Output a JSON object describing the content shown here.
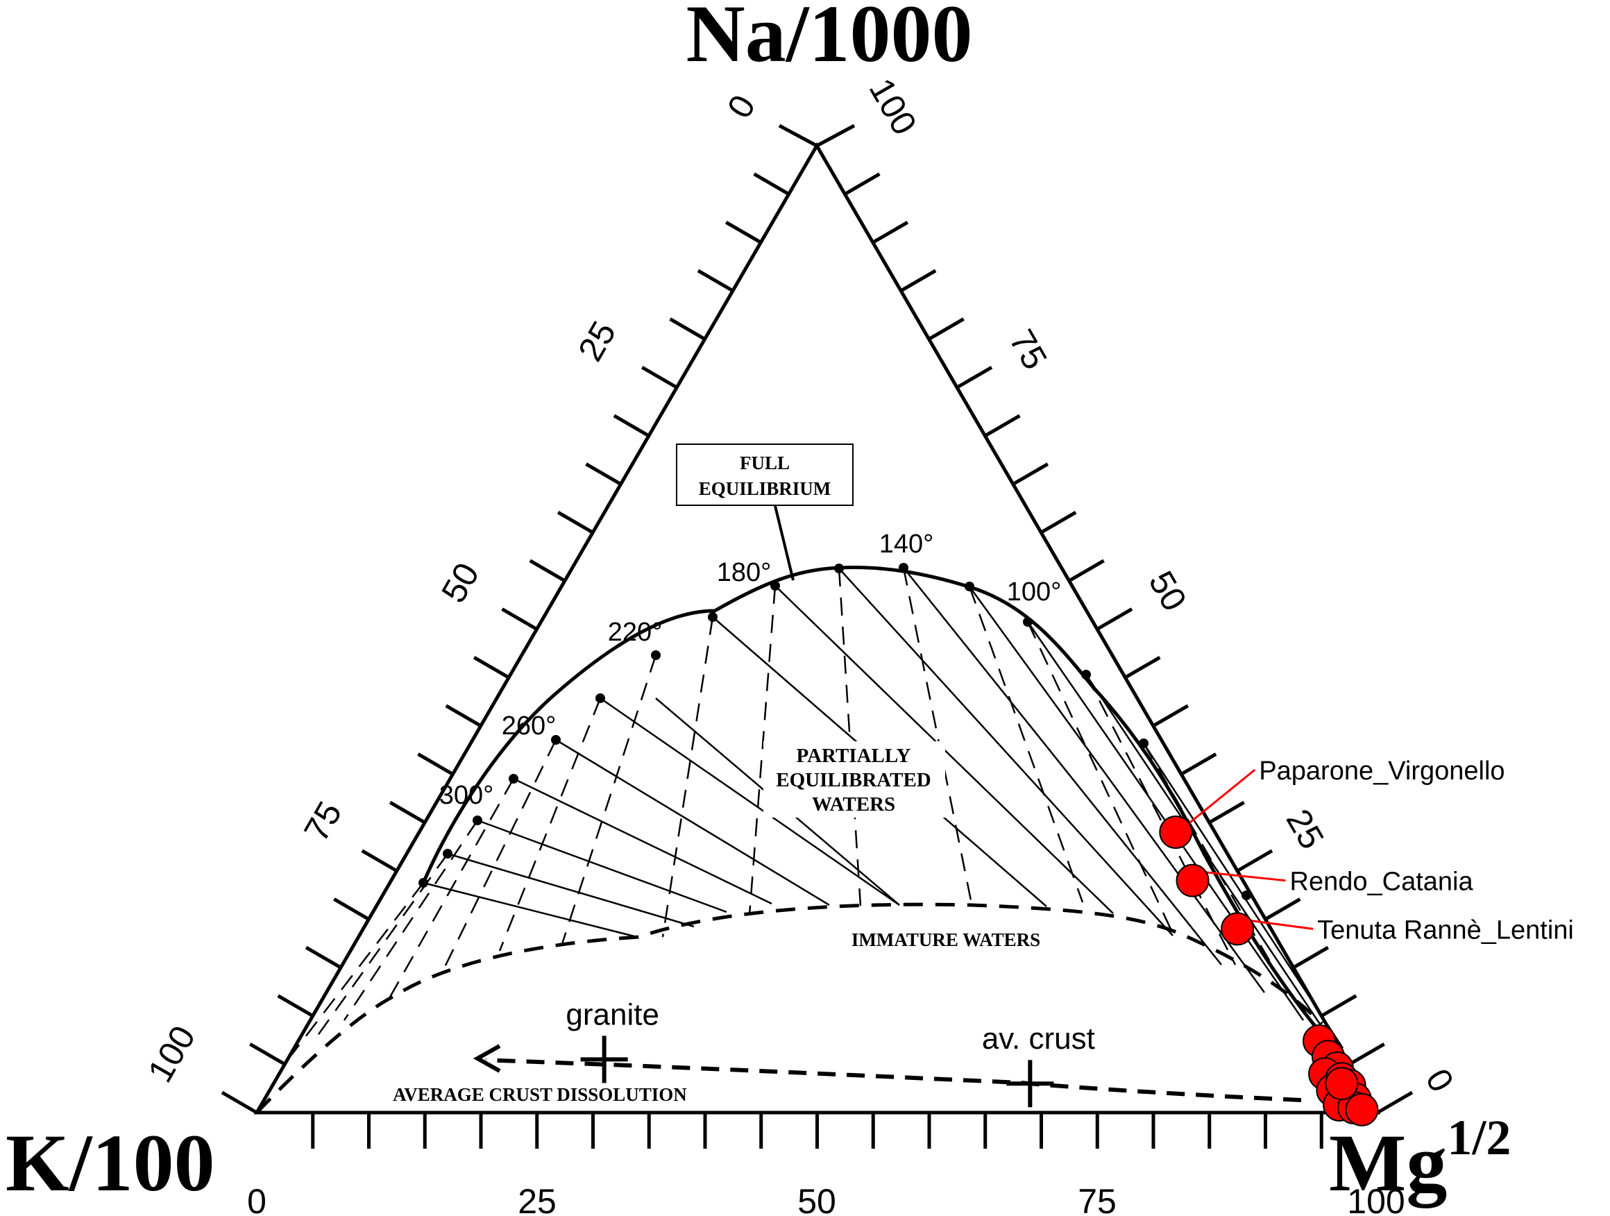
{
  "chart_data": {
    "type": "ternary",
    "vertices": {
      "top": "Na/1000",
      "left": "K/100",
      "right_base": "Mg",
      "right_sup": "1/2"
    },
    "top_labels": {
      "left": "0",
      "right": "100"
    },
    "left_labels": [
      "25",
      "50",
      "75",
      "100"
    ],
    "right_labels": [
      "75",
      "50",
      "25",
      "0"
    ],
    "bottom_labels": [
      "0",
      "25",
      "50",
      "75",
      "100"
    ],
    "region_labels": {
      "full_equilibrium": [
        "FULL",
        "EQUILIBRIUM"
      ],
      "partially": [
        "PARTIALLY",
        "EQUILIBRATED",
        "WATERS"
      ],
      "immature": "IMMATURE WATERS",
      "dissolution": "AVERAGE CRUST DISSOLUTION"
    },
    "temperatures": [
      {
        "label": "140°",
        "t": 140
      },
      {
        "label": "100°",
        "t": 100
      },
      {
        "label": "180°",
        "t": 180
      },
      {
        "label": "220°",
        "t": 220
      },
      {
        "label": "260°",
        "t": 260
      },
      {
        "label": "300°",
        "t": 300
      }
    ],
    "references": [
      {
        "label": "granite",
        "x": 31,
        "y": 5.5
      },
      {
        "label": "av. crust",
        "x": 69,
        "y": 3
      }
    ],
    "samples": [
      {
        "label": "Paparone_Virgonello",
        "x": 82,
        "y": 29
      },
      {
        "label": "Rendo_Catania",
        "x": 83.5,
        "y": 24
      },
      {
        "label": "Tenuta Rannè_Lentini",
        "x": 87.5,
        "y": 19
      }
    ],
    "cluster_points": [
      {
        "x": 94.8,
        "y": 7.4
      },
      {
        "x": 95.6,
        "y": 5.8
      },
      {
        "x": 96.4,
        "y": 4.6
      },
      {
        "x": 95.3,
        "y": 4.0
      },
      {
        "x": 96.8,
        "y": 3.5
      },
      {
        "x": 97.5,
        "y": 2.8
      },
      {
        "x": 96.0,
        "y": 2.3
      },
      {
        "x": 97.2,
        "y": 1.6
      },
      {
        "x": 98.0,
        "y": 1.4
      },
      {
        "x": 96.6,
        "y": 0.8
      },
      {
        "x": 97.9,
        "y": 0.5
      },
      {
        "x": 98.6,
        "y": 0.3
      },
      {
        "x": 96.8,
        "y": 3.0
      }
    ],
    "colors": {
      "sample": "#ff0000",
      "axis": "#000000"
    }
  }
}
